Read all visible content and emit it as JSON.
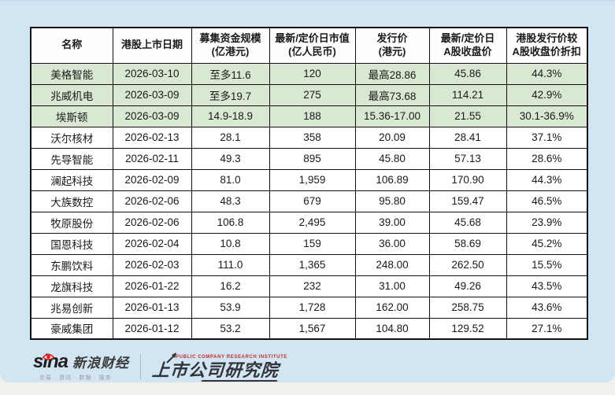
{
  "colors": {
    "card_bg": "#d2e5f2",
    "header_bg": "#fdfdfd",
    "highlight_row_bg": "#d8e8d2",
    "table_border": "#111111",
    "sina_red": "#d32423",
    "institute_red": "#c62b27",
    "institute_dark": "#33333a"
  },
  "table": {
    "columns": [
      {
        "label": "名称"
      },
      {
        "label": "港股上市日期"
      },
      {
        "label": "募集资金规模\n(亿港元)"
      },
      {
        "label": "最新/定价日市值\n(亿人民币)"
      },
      {
        "label": "发行价\n(港元)"
      },
      {
        "label": "最新/定价日\nA股收盘价"
      },
      {
        "label": "港股发行价较\nA股收盘价折扣"
      }
    ],
    "rows": [
      {
        "highlight": true,
        "cells": [
          "美格智能",
          "2026-03-10",
          "至多11.6",
          "120",
          "最高28.86",
          "45.86",
          "44.3%"
        ]
      },
      {
        "highlight": true,
        "cells": [
          "兆威机电",
          "2026-03-09",
          "至多19.7",
          "275",
          "最高73.68",
          "114.21",
          "42.9%"
        ]
      },
      {
        "highlight": true,
        "cells": [
          "埃斯顿",
          "2026-03-09",
          "14.9-18.9",
          "188",
          "15.36-17.00",
          "21.55",
          "30.1-36.9%"
        ]
      },
      {
        "highlight": false,
        "cells": [
          "沃尔核材",
          "2026-02-13",
          "28.1",
          "358",
          "20.09",
          "28.41",
          "37.1%"
        ]
      },
      {
        "highlight": false,
        "cells": [
          "先导智能",
          "2026-02-11",
          "49.3",
          "895",
          "45.80",
          "57.13",
          "28.6%"
        ]
      },
      {
        "highlight": false,
        "cells": [
          "澜起科技",
          "2026-02-09",
          "81.0",
          "1,959",
          "106.89",
          "170.90",
          "44.3%"
        ]
      },
      {
        "highlight": false,
        "cells": [
          "大族数控",
          "2026-02-06",
          "48.3",
          "679",
          "95.80",
          "159.47",
          "46.5%"
        ]
      },
      {
        "highlight": false,
        "cells": [
          "牧原股份",
          "2026-02-06",
          "106.8",
          "2,495",
          "39.00",
          "45.68",
          "23.9%"
        ]
      },
      {
        "highlight": false,
        "cells": [
          "国恩科技",
          "2026-02-04",
          "10.8",
          "159",
          "36.00",
          "58.69",
          "45.2%"
        ]
      },
      {
        "highlight": false,
        "cells": [
          "东鹏饮料",
          "2026-02-03",
          "111.0",
          "1,365",
          "248.00",
          "262.50",
          "15.5%"
        ]
      },
      {
        "highlight": false,
        "cells": [
          "龙旗科技",
          "2026-01-22",
          "16.2",
          "232",
          "31.00",
          "49.26",
          "43.5%"
        ]
      },
      {
        "highlight": false,
        "cells": [
          "兆易创新",
          "2026-01-13",
          "53.9",
          "1,728",
          "162.00",
          "258.75",
          "43.6%"
        ]
      },
      {
        "highlight": false,
        "cells": [
          "豪威集团",
          "2026-01-12",
          "53.2",
          "1,567",
          "104.80",
          "129.52",
          "27.1%"
        ]
      }
    ]
  },
  "footer": {
    "sina_logo_text": "sina",
    "sina_brand": "新浪财经",
    "sina_tagline": "交易 · 资讯 · 数据 · 服务",
    "institute_en": "PUBLIC COMPANY RESEARCH INSTITUTE",
    "institute_name": "上市公司研究院"
  }
}
